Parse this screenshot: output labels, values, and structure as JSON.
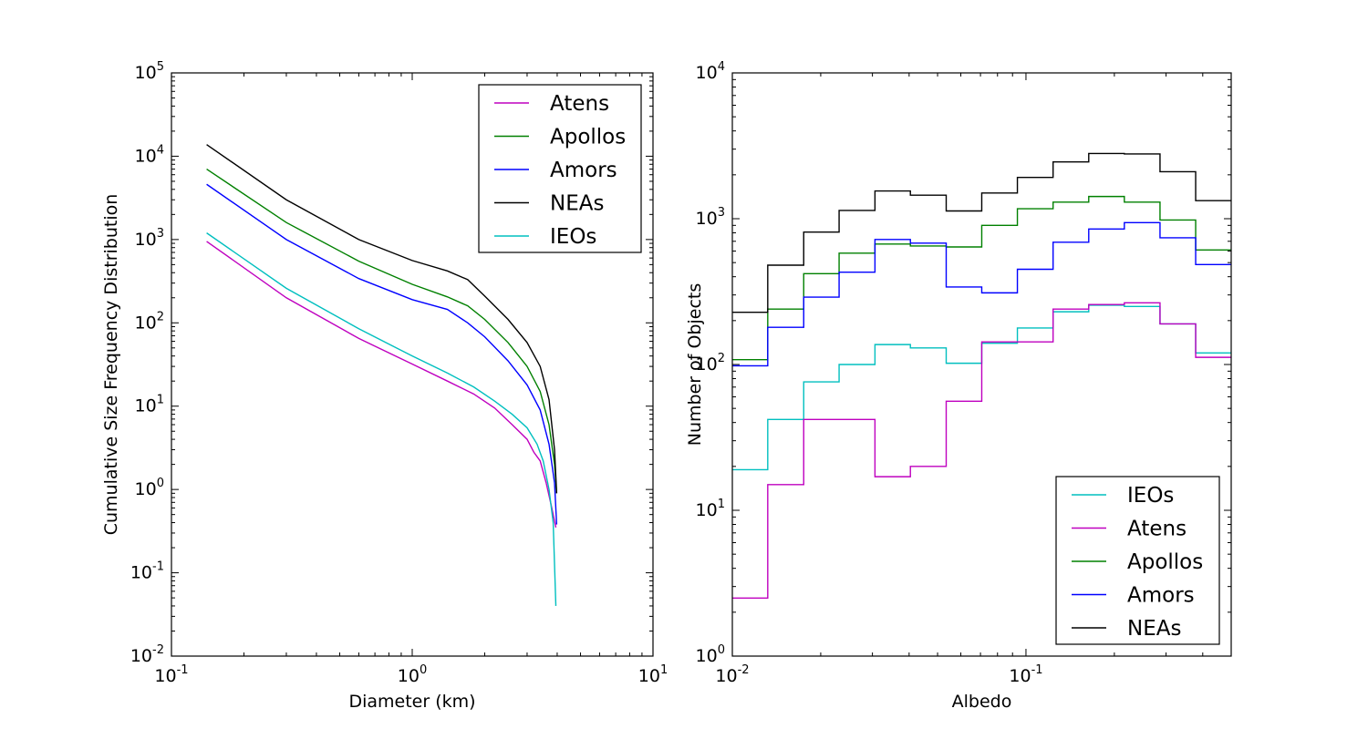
{
  "chart_data": [
    {
      "type": "line",
      "xlabel": "Diameter (km)",
      "ylabel": "Cumulative Size Frequency Distribution",
      "xscale": "log",
      "yscale": "log",
      "xlim": [
        0.1,
        10
      ],
      "ylim": [
        0.01,
        100000
      ],
      "x_ticks": [
        {
          "base": "10",
          "exp": "-1"
        },
        {
          "base": "10",
          "exp": "0"
        },
        {
          "base": "10",
          "exp": "1"
        }
      ],
      "y_ticks": [
        {
          "base": "10",
          "exp": "-2"
        },
        {
          "base": "10",
          "exp": "-1"
        },
        {
          "base": "10",
          "exp": "0"
        },
        {
          "base": "10",
          "exp": "1"
        },
        {
          "base": "10",
          "exp": "2"
        },
        {
          "base": "10",
          "exp": "3"
        },
        {
          "base": "10",
          "exp": "4"
        },
        {
          "base": "10",
          "exp": "5"
        }
      ],
      "legend_position": "top-right",
      "series": [
        {
          "name": "Atens",
          "color": "#bf00bf",
          "points": [
            [
              0.14,
              950
            ],
            [
              0.3,
              200
            ],
            [
              0.6,
              65
            ],
            [
              1.0,
              32
            ],
            [
              1.4,
              20
            ],
            [
              1.8,
              14
            ],
            [
              2.2,
              9.5
            ],
            [
              2.6,
              6
            ],
            [
              3.0,
              4
            ],
            [
              3.2,
              2.8
            ],
            [
              3.4,
              2.2
            ],
            [
              3.6,
              1.2
            ],
            [
              3.8,
              0.6
            ],
            [
              3.95,
              0.35
            ]
          ]
        },
        {
          "name": "Apollos",
          "color": "#008000",
          "points": [
            [
              0.14,
              7000
            ],
            [
              0.3,
              1600
            ],
            [
              0.6,
              550
            ],
            [
              1.0,
              290
            ],
            [
              1.4,
              205
            ],
            [
              1.7,
              160
            ],
            [
              2.0,
              110
            ],
            [
              2.5,
              58
            ],
            [
              3.0,
              30
            ],
            [
              3.4,
              15
            ],
            [
              3.7,
              6
            ],
            [
              3.9,
              2
            ],
            [
              3.98,
              0.9
            ]
          ]
        },
        {
          "name": "Amors",
          "color": "#0000ff",
          "points": [
            [
              0.14,
              4600
            ],
            [
              0.3,
              1000
            ],
            [
              0.6,
              340
            ],
            [
              1.0,
              190
            ],
            [
              1.4,
              145
            ],
            [
              1.7,
              100
            ],
            [
              2.0,
              68
            ],
            [
              2.5,
              35
            ],
            [
              3.0,
              18
            ],
            [
              3.4,
              9
            ],
            [
              3.7,
              3.5
            ],
            [
              3.9,
              1.2
            ],
            [
              3.98,
              0.38
            ]
          ]
        },
        {
          "name": "NEAs",
          "color": "#000000",
          "points": [
            [
              0.14,
              13800
            ],
            [
              0.3,
              3000
            ],
            [
              0.6,
              1000
            ],
            [
              1.0,
              560
            ],
            [
              1.4,
              420
            ],
            [
              1.7,
              330
            ],
            [
              2.0,
              210
            ],
            [
              2.5,
              110
            ],
            [
              3.0,
              58
            ],
            [
              3.4,
              30
            ],
            [
              3.7,
              12
            ],
            [
              3.9,
              3
            ],
            [
              3.98,
              0.9
            ]
          ]
        },
        {
          "name": "IEOs",
          "color": "#00bfbf",
          "points": [
            [
              0.14,
              1200
            ],
            [
              0.3,
              260
            ],
            [
              0.6,
              85
            ],
            [
              1.0,
              40
            ],
            [
              1.4,
              25
            ],
            [
              1.8,
              17
            ],
            [
              2.2,
              11.5
            ],
            [
              2.6,
              8
            ],
            [
              3.0,
              5.5
            ],
            [
              3.3,
              3.5
            ],
            [
              3.5,
              2.2
            ],
            [
              3.7,
              1.0
            ],
            [
              3.85,
              0.4
            ],
            [
              3.95,
              0.04
            ]
          ]
        }
      ]
    },
    {
      "type": "line",
      "xlabel": "Albedo",
      "ylabel": "Number of Objects",
      "xscale": "log",
      "yscale": "log",
      "xlim": [
        0.01,
        0.5
      ],
      "ylim": [
        1,
        10000
      ],
      "x_ticks": [
        {
          "base": "10",
          "exp": "-2"
        },
        {
          "base": "10",
          "exp": "-1"
        }
      ],
      "y_ticks": [
        {
          "base": "10",
          "exp": "0"
        },
        {
          "base": "10",
          "exp": "1"
        },
        {
          "base": "10",
          "exp": "2"
        },
        {
          "base": "10",
          "exp": "3"
        },
        {
          "base": "10",
          "exp": "4"
        }
      ],
      "legend_position": "bottom-right",
      "bin_edges": [
        0.01,
        0.0132,
        0.0175,
        0.0231,
        0.0306,
        0.0404,
        0.0535,
        0.0707,
        0.0935,
        0.1237,
        0.1636,
        0.2163,
        0.2861,
        0.3784,
        0.5
      ],
      "series": [
        {
          "name": "IEOs",
          "color": "#00bfbf",
          "counts": [
            19,
            42,
            76,
            100,
            137,
            130,
            102,
            140,
            178,
            230,
            255,
            250,
            190,
            120
          ]
        },
        {
          "name": "Atens",
          "color": "#bf00bf",
          "counts": [
            2.5,
            15,
            42,
            42,
            17,
            20,
            56,
            143,
            143,
            240,
            258,
            265,
            190,
            112
          ]
        },
        {
          "name": "Apollos",
          "color": "#008000",
          "counts": [
            108,
            240,
            420,
            580,
            670,
            650,
            640,
            900,
            1170,
            1300,
            1420,
            1300,
            980,
            610
          ]
        },
        {
          "name": "Amors",
          "color": "#0000ff",
          "counts": [
            98,
            180,
            290,
            430,
            720,
            680,
            340,
            310,
            450,
            690,
            850,
            940,
            740,
            485
          ]
        },
        {
          "name": "NEAs",
          "color": "#000000",
          "counts": [
            228,
            480,
            810,
            1140,
            1550,
            1450,
            1130,
            1500,
            1920,
            2450,
            2800,
            2780,
            2100,
            1330
          ]
        }
      ]
    }
  ]
}
